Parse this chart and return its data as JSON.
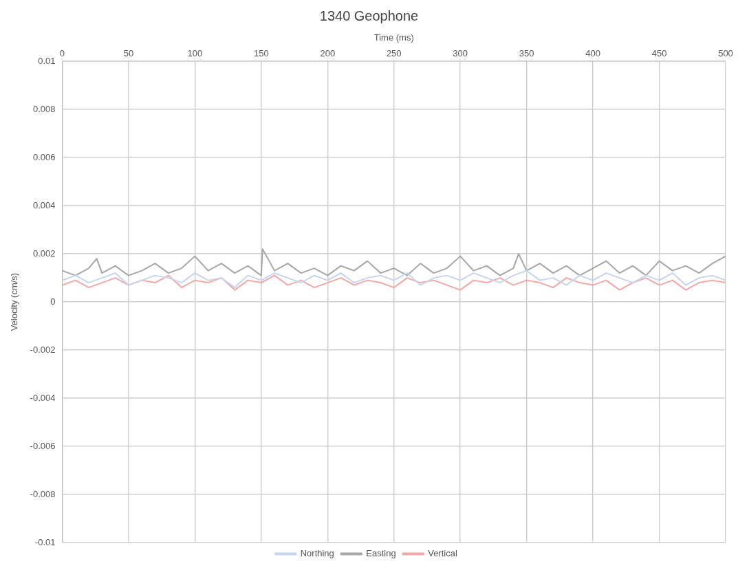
{
  "chart_data": {
    "type": "line",
    "title": "1340 Geophone",
    "xlabel": "Time (ms)",
    "ylabel": "Velocity (cm/s)",
    "x": [
      0,
      10,
      20,
      30,
      40,
      50,
      60,
      70,
      80,
      90,
      100,
      110,
      120,
      130,
      140,
      150,
      160,
      170,
      180,
      190,
      200,
      210,
      220,
      230,
      240,
      250,
      260,
      270,
      280,
      290,
      300,
      310,
      320,
      330,
      340,
      350,
      360,
      370,
      380,
      390,
      400,
      410,
      420,
      430,
      440,
      450,
      460,
      470,
      480,
      490,
      500
    ],
    "xlim": [
      0,
      500
    ],
    "xticks": [
      0,
      50,
      100,
      150,
      200,
      250,
      300,
      350,
      400,
      450,
      500
    ],
    "ylim": [
      -0.01,
      0.01
    ],
    "yticks": [
      -0.01,
      -0.008,
      -0.006,
      -0.004,
      -0.002,
      0,
      0.002,
      0.004,
      0.006,
      0.008,
      0.01
    ],
    "grid": true,
    "legend": "bottom",
    "marker": "none",
    "line_style": "solid",
    "series": [
      {
        "name": "Northing",
        "color": "#c5d5ee",
        "values": [
          0.0009,
          0.0011,
          0.0008,
          0.001,
          0.0012,
          0.0007,
          0.0009,
          0.0011,
          0.001,
          0.0008,
          0.0012,
          0.0009,
          0.001,
          0.0006,
          0.0011,
          0.0009,
          0.0012,
          0.001,
          0.0008,
          0.0011,
          0.0009,
          0.0012,
          0.0008,
          0.001,
          0.0011,
          0.0009,
          0.0012,
          0.0007,
          0.001,
          0.0011,
          0.0009,
          0.0012,
          0.001,
          0.0008,
          0.0011,
          0.0013,
          0.0009,
          0.001,
          0.0007,
          0.0011,
          0.0009,
          0.0012,
          0.001,
          0.0008,
          0.0011,
          0.0009,
          0.0012,
          0.0007,
          0.001,
          0.0011,
          0.0009
        ]
      },
      {
        "name": "Easting",
        "color": "#a6a6a6",
        "x": [
          0,
          10,
          20,
          26,
          30,
          40,
          50,
          60,
          70,
          80,
          90,
          100,
          110,
          120,
          130,
          140,
          150,
          151,
          160,
          170,
          180,
          190,
          200,
          210,
          220,
          230,
          240,
          250,
          260,
          270,
          280,
          290,
          300,
          310,
          320,
          330,
          340,
          344,
          350,
          360,
          370,
          380,
          390,
          400,
          410,
          420,
          430,
          440,
          450,
          460,
          470,
          480,
          490,
          500
        ],
        "values": [
          0.0013,
          0.0011,
          0.0014,
          0.0018,
          0.0012,
          0.0015,
          0.0011,
          0.0013,
          0.0016,
          0.0012,
          0.0014,
          0.0019,
          0.0013,
          0.0016,
          0.0012,
          0.0015,
          0.0011,
          0.0022,
          0.0013,
          0.0016,
          0.0012,
          0.0014,
          0.0011,
          0.0015,
          0.0013,
          0.0017,
          0.0012,
          0.0014,
          0.0011,
          0.0016,
          0.0012,
          0.0014,
          0.0019,
          0.0013,
          0.0015,
          0.0011,
          0.0014,
          0.002,
          0.0013,
          0.0016,
          0.0012,
          0.0015,
          0.0011,
          0.0014,
          0.0017,
          0.0012,
          0.0015,
          0.0011,
          0.0017,
          0.0013,
          0.0015,
          0.0012,
          0.0016,
          0.0019
        ]
      },
      {
        "name": "Vertical",
        "color": "#f4a6a6",
        "values": [
          0.0007,
          0.0009,
          0.0006,
          0.0008,
          0.001,
          0.0007,
          0.0009,
          0.0008,
          0.0011,
          0.0006,
          0.0009,
          0.0008,
          0.001,
          0.0005,
          0.0009,
          0.0008,
          0.0011,
          0.0007,
          0.0009,
          0.0006,
          0.0008,
          0.001,
          0.0007,
          0.0009,
          0.0008,
          0.0006,
          0.001,
          0.0008,
          0.0009,
          0.0007,
          0.0005,
          0.0009,
          0.0008,
          0.001,
          0.0007,
          0.0009,
          0.0008,
          0.0006,
          0.001,
          0.0008,
          0.0007,
          0.0009,
          0.0005,
          0.0008,
          0.001,
          0.0007,
          0.0009,
          0.0005,
          0.0008,
          0.0009,
          0.0008
        ]
      }
    ]
  }
}
